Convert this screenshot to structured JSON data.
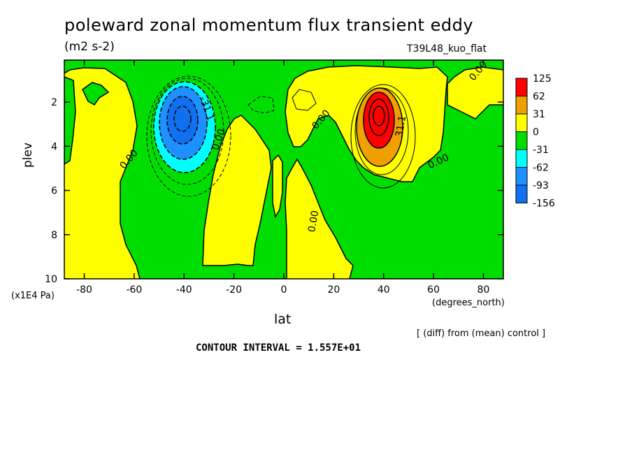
{
  "title": "poleward zonal momentum flux transient eddy",
  "units": "(m2 s-2)",
  "run_name": "T39L48_kuo_flat",
  "diff_note": "[ (diff) from (mean) control ]",
  "contour_interval": "CONTOUR INTERVAL = 1.557E+01",
  "chart_data": {
    "type": "contour",
    "xlabel": "lat",
    "xunit": "(degrees_north)",
    "ylabel": "plev",
    "yunit": "(x1E4 Pa)",
    "xlim": [
      -88,
      88
    ],
    "ylim": [
      10,
      0.1
    ],
    "x_ticks": [
      -80,
      -60,
      -40,
      -20,
      0,
      20,
      40,
      60,
      80
    ],
    "y_ticks": [
      2,
      4,
      6,
      8,
      10
    ],
    "grid": false,
    "colorbar": {
      "position": "right",
      "levels": [
        "125",
        "62",
        "31",
        "0",
        "-31",
        "-62",
        "-93",
        "-156"
      ],
      "colors": [
        "#ff0000",
        "#f0a000",
        "#ffff00",
        "#00dd00",
        "#00ffff",
        "#1e90ff",
        "#1070f0"
      ]
    },
    "contour_labels": [
      {
        "text": "0.00",
        "lat": 78,
        "plev": 0.6
      },
      {
        "text": "0.00",
        "lat": -62,
        "plev": 4.6
      },
      {
        "text": "0.00",
        "lat": -26,
        "plev": 3.7
      },
      {
        "text": "0.00",
        "lat": 15,
        "plev": 2.8
      },
      {
        "text": "0.00",
        "lat": 12,
        "plev": 7.4
      },
      {
        "text": "0.00",
        "lat": 62,
        "plev": 4.7
      },
      {
        "text": "-31.1",
        "lat": -31,
        "plev": 2.3
      },
      {
        "text": "31.1",
        "lat": 47,
        "plev": 3.1
      }
    ],
    "features": [
      {
        "kind": "min",
        "lat": -40,
        "plev": 2.8,
        "value": -156
      },
      {
        "kind": "max",
        "lat": 39,
        "plev": 2.8,
        "value": 125
      }
    ]
  }
}
